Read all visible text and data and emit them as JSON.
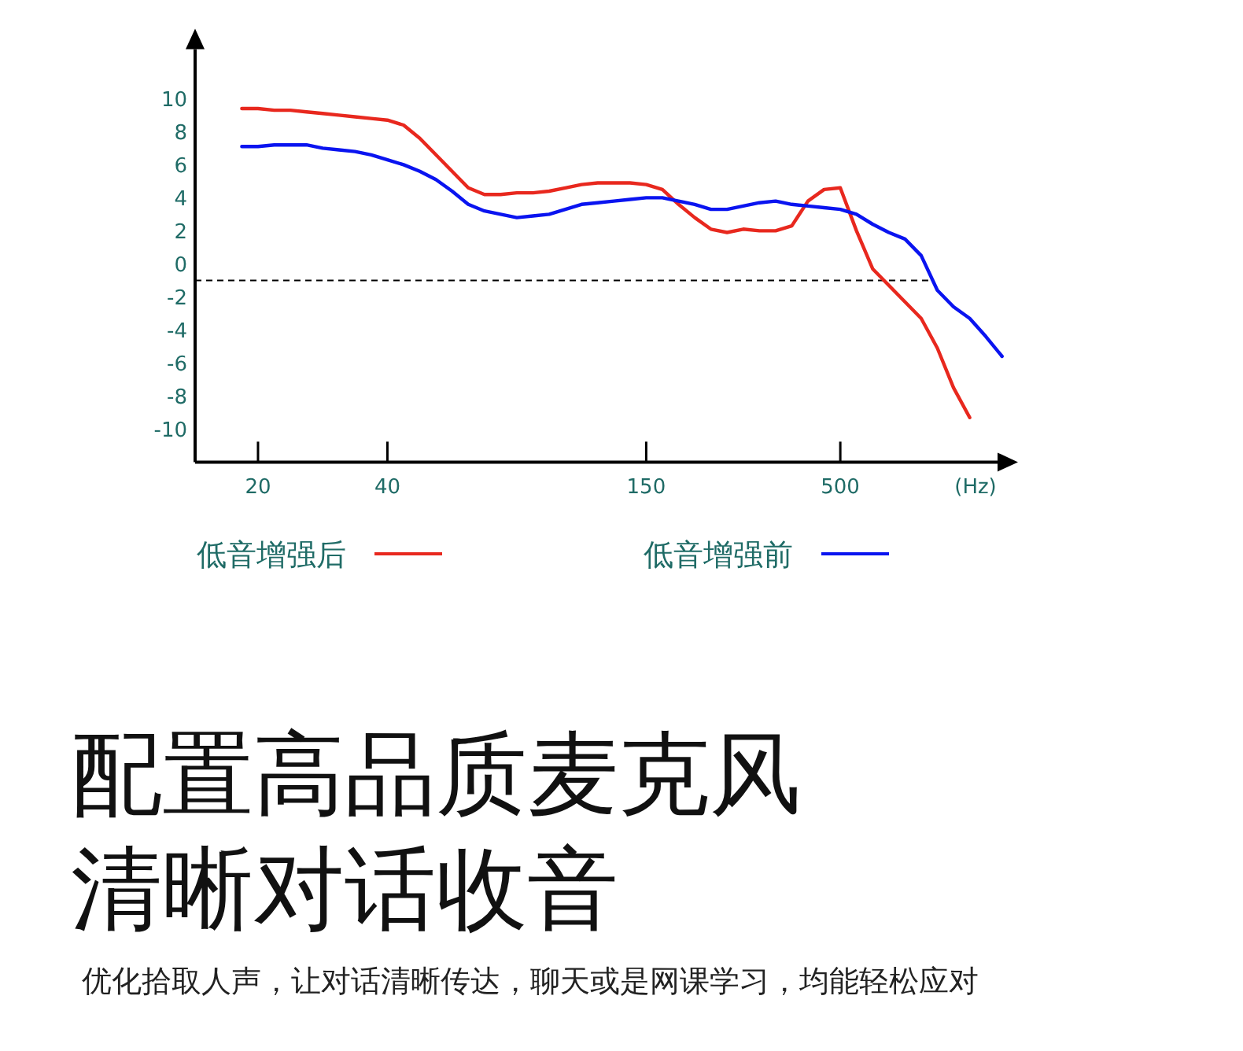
{
  "chart_data": {
    "type": "line",
    "title": "配置高品质麦克风",
    "subtitle": "清晰对话收音",
    "annotations": [
      "优化拾取人声，让对话清晰传达，聊天或是网课学习，均能轻松应对"
    ],
    "xlabel": "(Hz)",
    "categories": [
      null,
      "20",
      null,
      null,
      null,
      null,
      null,
      null,
      null,
      "40",
      null,
      null,
      null,
      null,
      null,
      null,
      null,
      null,
      null,
      null,
      null,
      null,
      null,
      null,
      null,
      "150",
      null,
      null,
      null,
      null,
      null,
      null,
      null,
      null,
      null,
      null,
      null,
      "500",
      null,
      null,
      null,
      null,
      null,
      null,
      null,
      null,
      null,
      null
    ],
    "series": [
      {
        "name": "低音增强后",
        "color": "#e8281e",
        "values": [
          9.4,
          9.4,
          9.3,
          9.3,
          9.2,
          9.1,
          9.0,
          8.9,
          8.8,
          8.7,
          8.4,
          7.6,
          6.6,
          5.6,
          4.6,
          4.2,
          4.2,
          4.3,
          4.3,
          4.4,
          4.6,
          4.8,
          4.9,
          4.9,
          4.9,
          4.8,
          4.5,
          3.6,
          2.8,
          2.1,
          1.9,
          2.1,
          2.0,
          2.0,
          2.3,
          3.8,
          4.5,
          4.6,
          2.0,
          -0.3,
          -1.3,
          -2.3,
          -3.3,
          -5.1,
          -7.5,
          -9.3,
          null,
          null
        ]
      },
      {
        "name": "低音增强前",
        "color": "#0a14f0",
        "values": [
          7.1,
          7.1,
          7.2,
          7.2,
          7.2,
          7.0,
          6.9,
          6.8,
          6.6,
          6.3,
          6.0,
          5.6,
          5.1,
          4.4,
          3.6,
          3.2,
          3.0,
          2.8,
          2.9,
          3.0,
          3.3,
          3.6,
          3.7,
          3.8,
          3.9,
          4.0,
          4.0,
          3.8,
          3.6,
          3.3,
          3.3,
          3.5,
          3.7,
          3.8,
          3.6,
          3.5,
          3.4,
          3.3,
          3.0,
          2.4,
          1.9,
          1.5,
          0.5,
          -1.6,
          -2.6,
          -3.3,
          -4.4,
          -5.6
        ]
      }
    ],
    "ylim": [
      -12,
      13
    ],
    "yticks": [
      -10,
      -8,
      -6,
      -4,
      -2,
      0,
      2,
      4,
      6,
      8,
      10
    ],
    "ref_lines": [
      {
        "axis": "y",
        "value": -1,
        "color": "#000000",
        "line_style": "dashed"
      }
    ],
    "grid": false,
    "legend": "bottom",
    "marker": "none",
    "line_style": "solid"
  }
}
